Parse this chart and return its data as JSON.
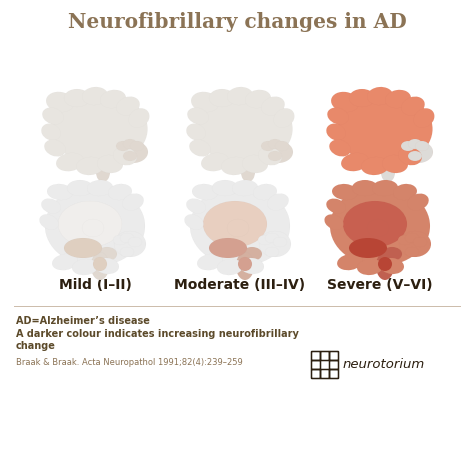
{
  "title": "Neurofibrillary changes in AD",
  "title_color": "#8B7355",
  "title_fontsize": 14.5,
  "background_color": "#FFFFFF",
  "labels": [
    "Mild (I–II)",
    "Moderate (III–IV)",
    "Severe (V–VI)"
  ],
  "label_color": "#2C1F10",
  "label_fontsize": 10,
  "footnote1": "AD=Alzheimer’s disease",
  "footnote2": "A darker colour indicates increasing neurofibrillary\nchange",
  "footnote3": "Braak & Braak. Acta Neuropathol 1991;82(4):239–259",
  "footnote_color1": "#5C4A2A",
  "footnote_color2": "#5C4A2A",
  "footnote_color3": "#8B7355",
  "brand_text": "neurotorium",
  "brand_color": "#2C1F10",
  "outline_light": "#AAAAAA",
  "outline_med": "#999090",
  "outline_dark": "#C06050",
  "gyrus_fill_white": "#EBEBEB",
  "gyrus_fill_mild": "#E8E5E0",
  "gyrus_stroke_mild": "#BBBBBB",
  "gyrus_fill_mod": "#E8E5E0",
  "gyrus_stroke_mod": "#BBBBBB",
  "gyrus_fill_severe_lt": "#E8896A",
  "gyrus_fill_severe_dk": "#D4705A",
  "gyrus_stroke_severe": "#C06050",
  "sag_outer_mild": "#EBEBEB",
  "sag_inner_mild": "#F0EEEC",
  "sag_hippo_mild": "#DFCFC0",
  "sag_outer_mod": "#EBEBEB",
  "sag_inner_mod": "#E8CFC0",
  "sag_hippo_mod": "#D4A090",
  "sag_outer_sev": "#D4846A",
  "sag_inner_sev": "#C86050",
  "sag_hippo_sev": "#B84535",
  "stem_mild": "#E0D8D0",
  "stem_mod": "#D4B0A0",
  "stem_sev": "#C06050"
}
